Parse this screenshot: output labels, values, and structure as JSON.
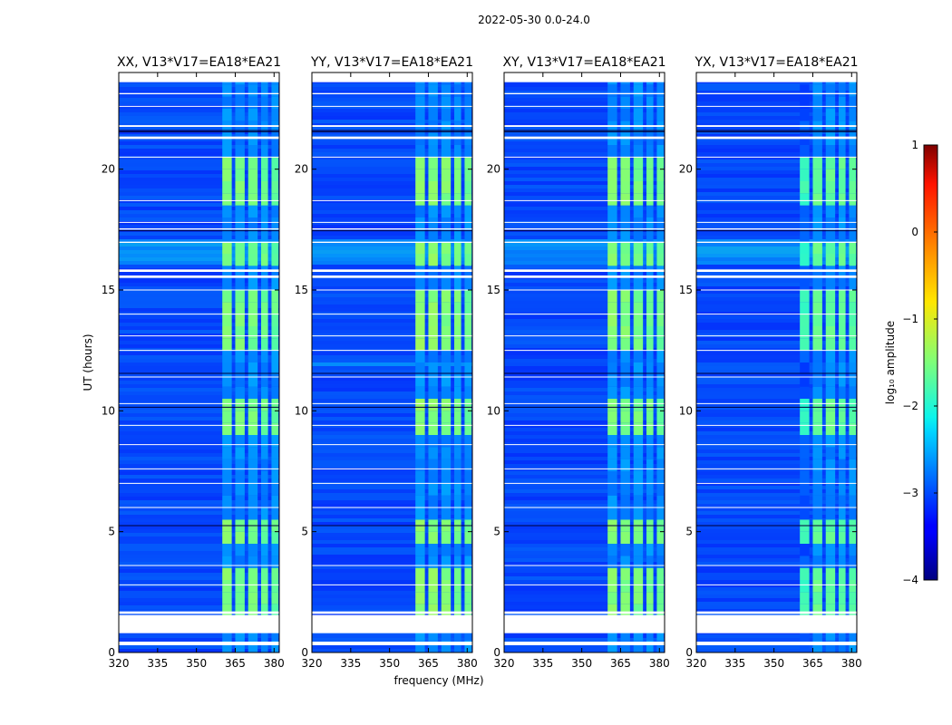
{
  "chart_data": {
    "type": "heatmap",
    "suptitle": "2022-05-30 0.0-24.0",
    "xlabel": "frequency (MHz)",
    "ylabel": "UT (hours)",
    "xlim": [
      320,
      382
    ],
    "ylim": [
      0,
      24
    ],
    "xticks": [
      320,
      335,
      350,
      365,
      380
    ],
    "yticks": [
      0,
      5,
      10,
      15,
      20
    ],
    "panels": [
      {
        "title": "XX, V13*V17=EA18*EA21",
        "rfi_strength": 0.85
      },
      {
        "title": "YY, V13*V17=EA18*EA21",
        "rfi_strength": 1.0
      },
      {
        "title": "XY, V13*V17=EA18*EA21",
        "rfi_strength": 0.9
      },
      {
        "title": "YX, V13*V17=EA18*EA21",
        "rfi_strength": 0.7
      }
    ],
    "colorbar": {
      "label": "log₁₀ amplitude",
      "min": -4,
      "max": 1,
      "ticks": [
        1,
        0,
        -1,
        -2,
        -3,
        -4
      ]
    },
    "rfi_channels_mhz": [
      [
        360,
        364
      ],
      [
        365,
        369
      ],
      [
        370,
        374
      ],
      [
        375,
        378
      ],
      [
        379,
        382
      ]
    ],
    "flagged_hours": [
      [
        0.3,
        0.45
      ],
      [
        0.8,
        1.55
      ],
      [
        1.6,
        1.7
      ],
      [
        15.5,
        15.6
      ],
      [
        15.75,
        15.85
      ],
      [
        16.95,
        17.0
      ],
      [
        17.5,
        17.55
      ],
      [
        21.25,
        21.35
      ],
      [
        21.75,
        21.82
      ],
      [
        23.1,
        23.15
      ],
      [
        23.6,
        24.0
      ]
    ]
  }
}
